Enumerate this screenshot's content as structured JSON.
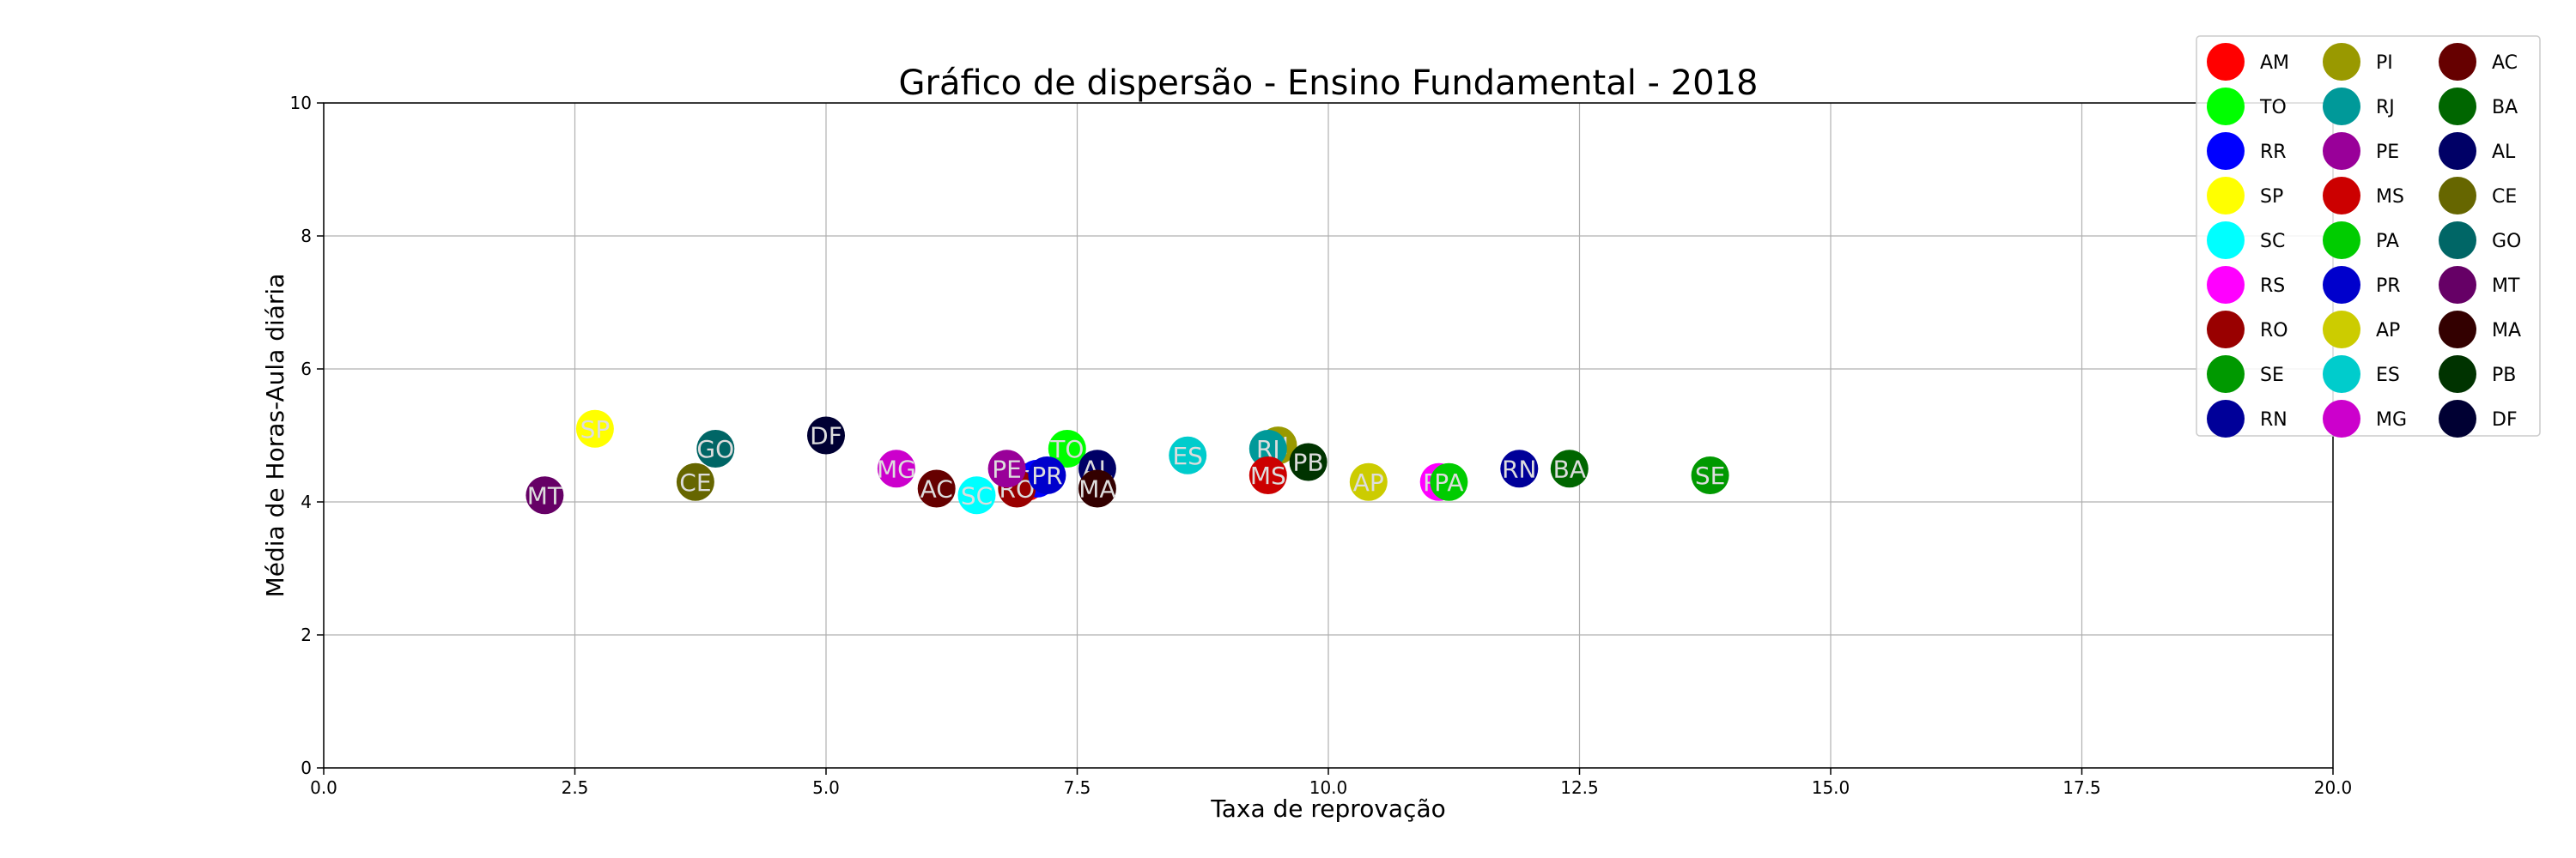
{
  "chart_data": {
    "type": "scatter",
    "title": "Gráfico de dispersão - Ensino Fundamental - 2018",
    "xlabel": "Taxa de reprovação",
    "ylabel": "Média de Horas-Aula diária",
    "xlim": [
      0,
      20
    ],
    "ylim": [
      0,
      10
    ],
    "xticks": [
      "0.0",
      "2.5",
      "5.0",
      "7.5",
      "10.0",
      "12.5",
      "15.0",
      "17.5",
      "20.0"
    ],
    "yticks": [
      "0",
      "2",
      "4",
      "6",
      "8",
      "10"
    ],
    "grid": true,
    "legend_position": "top-right",
    "points": [
      {
        "name": "AM",
        "x": 7.0,
        "y": 4.3,
        "color": "#ff0000"
      },
      {
        "name": "TO",
        "x": 7.4,
        "y": 4.8,
        "color": "#00ff00"
      },
      {
        "name": "RR",
        "x": 7.1,
        "y": 4.35,
        "color": "#0000ff"
      },
      {
        "name": "SP",
        "x": 2.7,
        "y": 5.1,
        "color": "#ffff00"
      },
      {
        "name": "SC",
        "x": 6.5,
        "y": 4.1,
        "color": "#00ffff"
      },
      {
        "name": "RS",
        "x": 11.1,
        "y": 4.3,
        "color": "#ff00ff"
      },
      {
        "name": "RO",
        "x": 6.9,
        "y": 4.2,
        "color": "#990000"
      },
      {
        "name": "SE",
        "x": 13.8,
        "y": 4.4,
        "color": "#009900"
      },
      {
        "name": "RN",
        "x": 11.9,
        "y": 4.5,
        "color": "#000099"
      },
      {
        "name": "PI",
        "x": 9.5,
        "y": 4.85,
        "color": "#999900"
      },
      {
        "name": "RJ",
        "x": 9.4,
        "y": 4.8,
        "color": "#009999"
      },
      {
        "name": "PE",
        "x": 6.8,
        "y": 4.5,
        "color": "#990099"
      },
      {
        "name": "MS",
        "x": 9.4,
        "y": 4.4,
        "color": "#cc0000"
      },
      {
        "name": "PA",
        "x": 11.2,
        "y": 4.3,
        "color": "#00cc00"
      },
      {
        "name": "PR",
        "x": 7.2,
        "y": 4.4,
        "color": "#0000cc"
      },
      {
        "name": "AP",
        "x": 10.4,
        "y": 4.3,
        "color": "#cccc00"
      },
      {
        "name": "ES",
        "x": 8.6,
        "y": 4.7,
        "color": "#00cccc"
      },
      {
        "name": "MG",
        "x": 5.7,
        "y": 4.5,
        "color": "#cc00cc"
      },
      {
        "name": "AC",
        "x": 6.1,
        "y": 4.2,
        "color": "#660000"
      },
      {
        "name": "BA",
        "x": 12.4,
        "y": 4.5,
        "color": "#006600"
      },
      {
        "name": "AL",
        "x": 7.7,
        "y": 4.5,
        "color": "#000066"
      },
      {
        "name": "CE",
        "x": 3.7,
        "y": 4.3,
        "color": "#666600"
      },
      {
        "name": "GO",
        "x": 3.9,
        "y": 4.8,
        "color": "#006666"
      },
      {
        "name": "MT",
        "x": 2.2,
        "y": 4.1,
        "color": "#660066"
      },
      {
        "name": "MA",
        "x": 7.7,
        "y": 4.2,
        "color": "#330000"
      },
      {
        "name": "PB",
        "x": 9.8,
        "y": 4.6,
        "color": "#003300"
      },
      {
        "name": "DF",
        "x": 5.0,
        "y": 5.0,
        "color": "#000033"
      }
    ]
  }
}
